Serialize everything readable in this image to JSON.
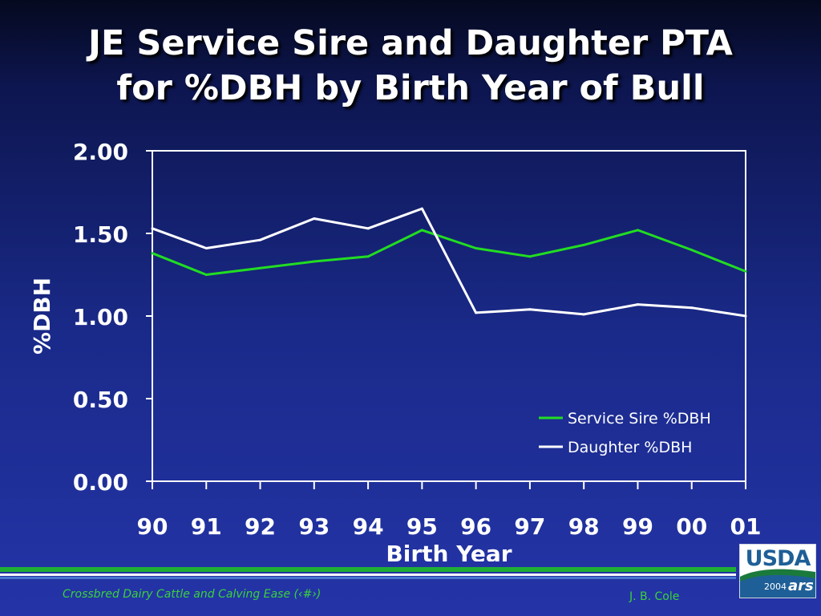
{
  "slide": {
    "title_line1": "JE Service Sire and Daughter PTA",
    "title_line2": "for %DBH by Birth Year of Bull",
    "footer_left": "Crossbred Dairy Cattle and Calving Ease (‹#›)",
    "footer_right": "J. B. Cole",
    "logo_text": "USDA",
    "logo_year": "2004",
    "logo_mark": "ars"
  },
  "colors": {
    "service_sire": "#22dd22",
    "daughter": "#ffffff",
    "footer_green": "#39d23a",
    "logo_blue": "#1f5f97"
  },
  "chart_data": {
    "type": "line",
    "title": "",
    "xlabel": "Birth Year",
    "ylabel": "%DBH",
    "categories": [
      "90",
      "91",
      "92",
      "93",
      "94",
      "95",
      "96",
      "97",
      "98",
      "99",
      "00",
      "01"
    ],
    "ylim": [
      0,
      2
    ],
    "yticks": [
      "0.00",
      "0.50",
      "1.00",
      "1.50",
      "2.00"
    ],
    "ytick_values": [
      0,
      0.5,
      1,
      1.5,
      2
    ],
    "grid": false,
    "legend_position": "bottom-right",
    "series": [
      {
        "name": "Service Sire %DBH",
        "color": "#22dd22",
        "values": [
          1.38,
          1.25,
          1.29,
          1.33,
          1.36,
          1.52,
          1.41,
          1.36,
          1.43,
          1.52,
          1.4,
          1.27
        ]
      },
      {
        "name": "Daughter %DBH",
        "color": "#ffffff",
        "values": [
          1.53,
          1.41,
          1.46,
          1.59,
          1.53,
          1.65,
          1.02,
          1.04,
          1.01,
          1.07,
          1.05,
          1.0
        ]
      }
    ]
  }
}
